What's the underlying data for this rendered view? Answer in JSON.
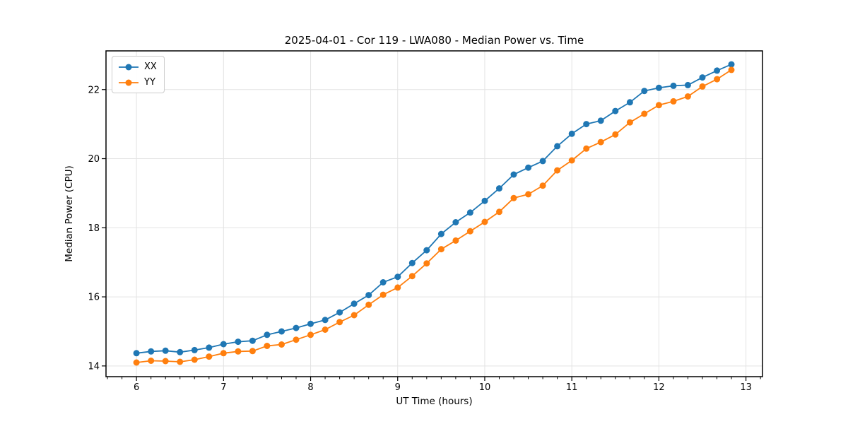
{
  "figure": {
    "title": "2025-04-01 - Cor 119 - LWA080 - Median Power vs. Time",
    "xlabel": "UT Time (hours)",
    "ylabel": "Median Power (CPU)"
  },
  "chart_data": {
    "type": "line",
    "title": "2025-04-01 - Cor 119 - LWA080 - Median Power vs. Time",
    "xlabel": "UT Time (hours)",
    "ylabel": "Median Power (CPU)",
    "xlim": [
      5.65,
      13.19
    ],
    "ylim": [
      13.69,
      23.12
    ],
    "x_ticks": [
      6,
      7,
      8,
      9,
      10,
      11,
      12,
      13
    ],
    "y_ticks": [
      14,
      16,
      18,
      20,
      22
    ],
    "x_minor_step": 0.1666667,
    "grid": true,
    "grid_color": "#e3e3e3",
    "legend_position": "upper-left",
    "x": [
      6.0,
      6.167,
      6.333,
      6.5,
      6.667,
      6.833,
      7.0,
      7.167,
      7.333,
      7.5,
      7.667,
      7.833,
      8.0,
      8.167,
      8.333,
      8.5,
      8.667,
      8.833,
      9.0,
      9.167,
      9.333,
      9.5,
      9.667,
      9.833,
      10.0,
      10.167,
      10.333,
      10.5,
      10.667,
      10.833,
      11.0,
      11.167,
      11.333,
      11.5,
      11.667,
      11.833,
      12.0,
      12.167,
      12.333,
      12.5,
      12.667,
      12.833
    ],
    "series": [
      {
        "name": "XX",
        "color": "#1f77b4",
        "values": [
          14.37,
          14.42,
          14.44,
          14.4,
          14.46,
          14.53,
          14.63,
          14.7,
          14.73,
          14.9,
          15.0,
          15.1,
          15.22,
          15.33,
          15.55,
          15.8,
          16.05,
          16.42,
          16.58,
          16.98,
          17.35,
          17.82,
          18.16,
          18.44,
          18.78,
          19.14,
          19.54,
          19.74,
          19.93,
          20.36,
          20.72,
          21.0,
          21.1,
          21.38,
          21.63,
          21.96,
          22.05,
          22.11,
          22.13,
          22.35,
          22.55,
          22.73
        ]
      },
      {
        "name": "YY",
        "color": "#ff7f0e",
        "values": [
          14.1,
          14.15,
          14.14,
          14.12,
          14.18,
          14.27,
          14.37,
          14.42,
          14.43,
          14.58,
          14.62,
          14.76,
          14.9,
          15.05,
          15.27,
          15.47,
          15.77,
          16.06,
          16.27,
          16.6,
          16.97,
          17.38,
          17.63,
          17.9,
          18.17,
          18.46,
          18.86,
          18.97,
          19.22,
          19.66,
          19.95,
          20.29,
          20.48,
          20.7,
          21.05,
          21.3,
          21.55,
          21.66,
          21.8,
          22.09,
          22.3,
          22.57
        ]
      }
    ]
  }
}
